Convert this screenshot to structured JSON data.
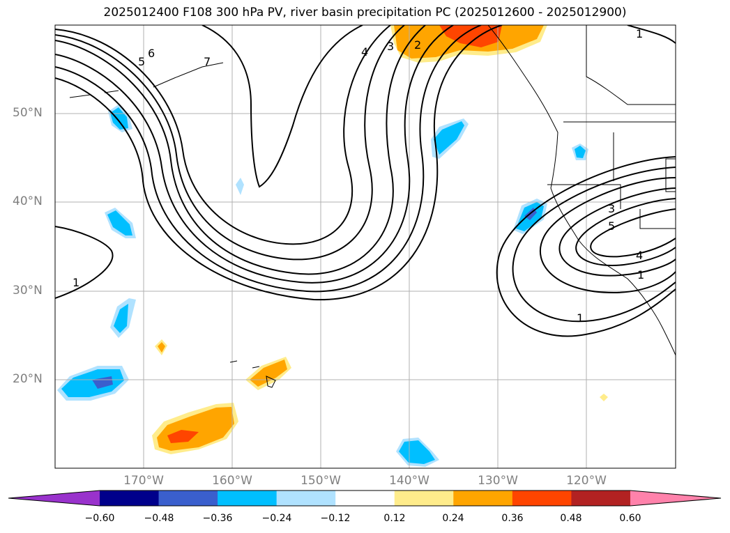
{
  "title": "2025012400 F108 300 hPa PV, river basin precipitation PC (2025012600 - 2025012900)",
  "lat_labels": [
    {
      "text": "50°N",
      "lat": 50
    },
    {
      "text": "40°N",
      "lat": 40
    },
    {
      "text": "30°N",
      "lat": 30
    },
    {
      "text": "20°N",
      "lat": 20
    }
  ],
  "lon_labels": [
    {
      "text": "170°W",
      "lon": -170
    },
    {
      "text": "160°W",
      "lon": -160
    },
    {
      "text": "150°W",
      "lon": -150
    },
    {
      "text": "140°W",
      "lon": -140
    },
    {
      "text": "130°W",
      "lon": -130
    },
    {
      "text": "120°W",
      "lon": -120
    }
  ],
  "contour_labels": [
    "1",
    "1",
    "1",
    "2",
    "3",
    "4",
    "5",
    "6",
    "7",
    "3",
    "5",
    "4",
    "1"
  ],
  "colorbar": {
    "ticks": [
      "−0.60",
      "−0.48",
      "−0.36",
      "−0.24",
      "−0.12",
      "0.12",
      "0.24",
      "0.36",
      "0.48",
      "0.60"
    ],
    "colors": [
      "#9932cc",
      "#00008b",
      "#3a5fcd",
      "#00bfff",
      "#b0e2ff",
      "#ffffff",
      "#ffec8b",
      "#ffa500",
      "#ff4500",
      "#b22222",
      "#ff82ab"
    ]
  },
  "colors": {
    "grid": "#b0b0b0",
    "contour": "#000000",
    "coast": "#000000"
  }
}
